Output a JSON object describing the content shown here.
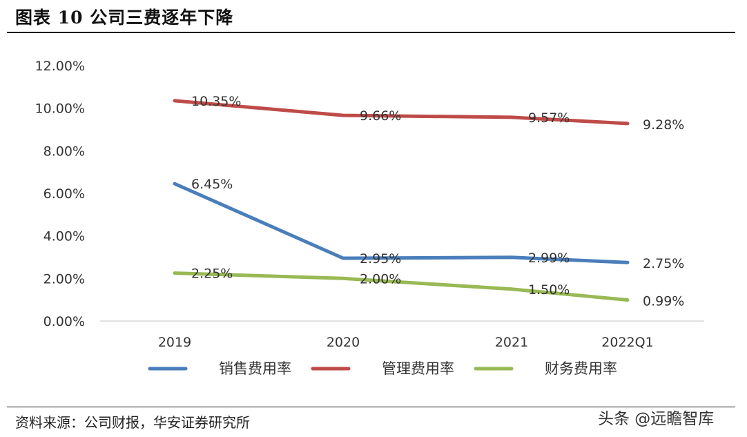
{
  "header": {
    "title": "图表 10 公司三费逐年下降"
  },
  "footer": {
    "source": "资料来源：公司财报，华安证券研究所",
    "watermark": "头条 @远瞻智库"
  },
  "chart_data": {
    "type": "line",
    "title": "",
    "xlabel": "",
    "ylabel": "",
    "categories": [
      "2019",
      "2020",
      "2021",
      "2022Q1"
    ],
    "ylim": [
      0,
      12
    ],
    "yticks": [
      "0.00%",
      "2.00%",
      "4.00%",
      "6.00%",
      "8.00%",
      "10.00%",
      "12.00%"
    ],
    "grid": false,
    "legend_position": "bottom",
    "series": [
      {
        "name": "销售费用率",
        "color": "#4a7ebb",
        "values": [
          6.45,
          2.95,
          2.99,
          2.75
        ],
        "labels": [
          "6.45%",
          "2.95%",
          "2.99%",
          "2.75%"
        ]
      },
      {
        "name": "管理费用率",
        "color": "#be4b48",
        "values": [
          10.35,
          9.66,
          9.57,
          9.28
        ],
        "labels": [
          "10.35%",
          "9.66%",
          "9.57%",
          "9.28%"
        ]
      },
      {
        "name": "财务费用率",
        "color": "#98b954",
        "values": [
          2.25,
          2.0,
          1.5,
          0.99
        ],
        "labels": [
          "2.25%",
          "2.00%",
          "1.50%",
          "0.99%"
        ]
      }
    ]
  }
}
